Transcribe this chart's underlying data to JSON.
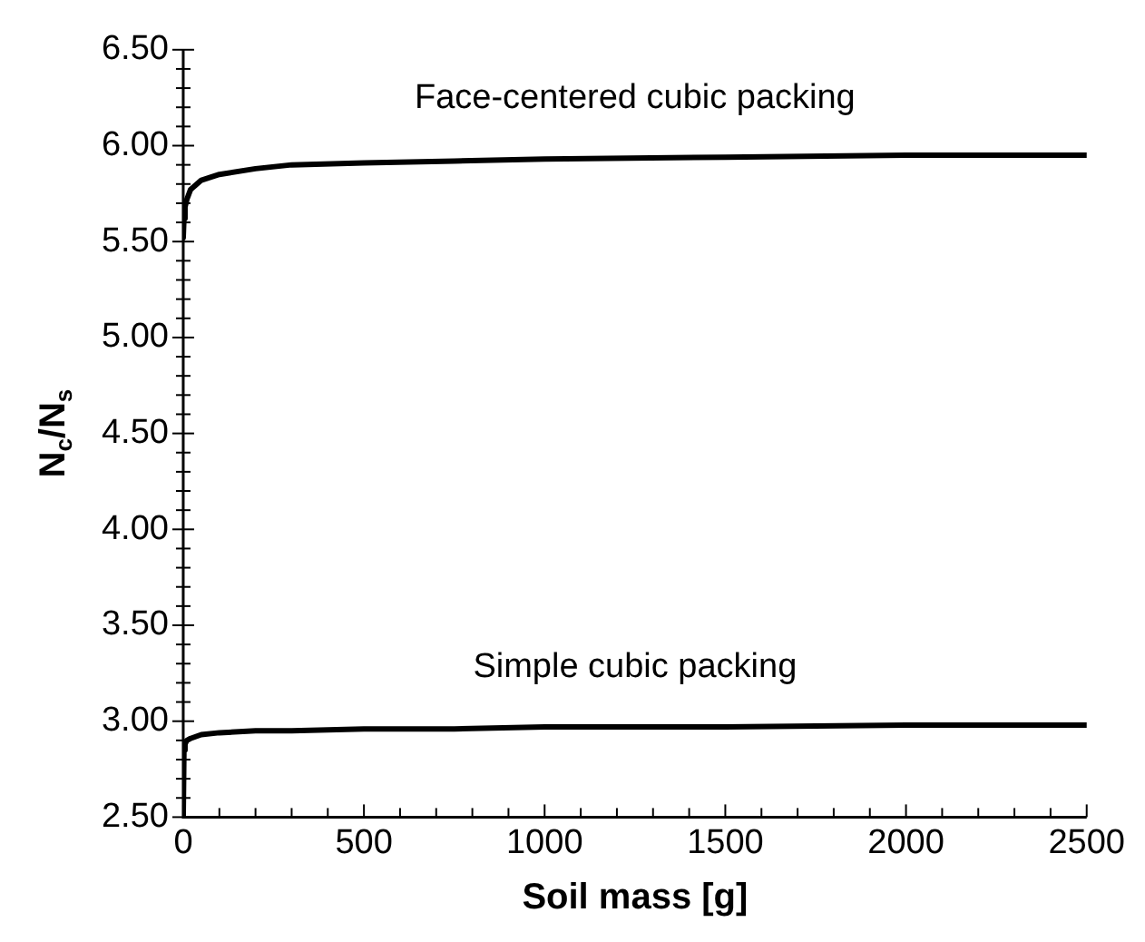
{
  "chart_data": {
    "type": "line",
    "xlabel": "Soil mass [g]",
    "ylabel": "N$_{c}$/N$_{s}$",
    "xlim": [
      0,
      2500
    ],
    "xticks": [
      0,
      {
        "value": 100,
        "label": null
      },
      {
        "value": 200,
        "label": null
      },
      {
        "value": 300,
        "label": null
      },
      {
        "value": 400,
        "label": null
      },
      500,
      {
        "value": 600,
        "label": null
      },
      {
        "value": 700,
        "label": null
      },
      {
        "value": 800,
        "label": null
      },
      {
        "value": 900,
        "label": null
      },
      1000,
      {
        "value": 1100,
        "label": null
      },
      {
        "value": 1200,
        "label": null
      },
      {
        "value": 1300,
        "label": null
      },
      {
        "value": 1400,
        "label": null
      },
      1500,
      {
        "value": 1600,
        "label": null
      },
      {
        "value": 1700,
        "label": null
      },
      {
        "value": 1800,
        "label": null
      },
      {
        "value": 1900,
        "label": null
      },
      2000,
      {
        "value": 2100,
        "label": null
      },
      {
        "value": 2200,
        "label": null
      },
      {
        "value": 2300,
        "label": null
      },
      {
        "value": 2400,
        "label": null
      },
      2500
    ],
    "ylim": [
      2.5,
      6.5
    ],
    "yticks": [
      {
        "value": 2.5,
        "label": "2.50"
      },
      {
        "value": 2.6,
        "label": null
      },
      {
        "value": 2.7,
        "label": null
      },
      {
        "value": 2.8,
        "label": null
      },
      {
        "value": 2.9,
        "label": null
      },
      {
        "value": 3,
        "label": "3.00"
      },
      {
        "value": 3.1,
        "label": null
      },
      {
        "value": 3.2,
        "label": null
      },
      {
        "value": 3.3,
        "label": null
      },
      {
        "value": 3.4,
        "label": null
      },
      {
        "value": 3.5,
        "label": "3.50"
      },
      {
        "value": 3.6,
        "label": null
      },
      {
        "value": 3.7,
        "label": null
      },
      {
        "value": 3.8,
        "label": null
      },
      {
        "value": 3.9,
        "label": null
      },
      {
        "value": 4,
        "label": "4.00"
      },
      {
        "value": 4.1,
        "label": null
      },
      {
        "value": 4.2,
        "label": null
      },
      {
        "value": 4.3,
        "label": null
      },
      {
        "value": 4.4,
        "label": null
      },
      {
        "value": 4.5,
        "label": "4.50"
      },
      {
        "value": 4.6,
        "label": null
      },
      {
        "value": 4.7,
        "label": null
      },
      {
        "value": 4.8,
        "label": null
      },
      {
        "value": 4.9,
        "label": null
      },
      {
        "value": 5,
        "label": "5.00"
      },
      {
        "value": 5.1,
        "label": null
      },
      {
        "value": 5.2,
        "label": null
      },
      {
        "value": 5.3,
        "label": null
      },
      {
        "value": 5.4,
        "label": null
      },
      {
        "value": 5.5,
        "label": "5.50"
      },
      {
        "value": 5.6,
        "label": null
      },
      {
        "value": 5.7,
        "label": null
      },
      {
        "value": 5.8,
        "label": null
      },
      {
        "value": 5.9,
        "label": null
      },
      {
        "value": 6,
        "label": "6.00"
      },
      {
        "value": 6.1,
        "label": null
      },
      {
        "value": 6.2,
        "label": null
      },
      {
        "value": 6.3,
        "label": null
      },
      {
        "value": 6.4,
        "label": null
      },
      {
        "value": 6.5,
        "label": "6.50"
      }
    ],
    "grid": false,
    "legend": false,
    "marker": "none",
    "line_style": "solid",
    "series": [
      {
        "color": "#000000",
        "x": [
          0,
          2,
          5,
          10,
          20,
          50,
          100,
          200,
          300,
          500,
          750,
          1000,
          1500,
          2000,
          2500
        ],
        "values": [
          5.52,
          5.62,
          5.68,
          5.72,
          5.77,
          5.82,
          5.85,
          5.88,
          5.9,
          5.91,
          5.92,
          5.93,
          5.94,
          5.95,
          5.95
        ]
      },
      {
        "color": "#000000",
        "x": [
          0,
          2,
          5,
          10,
          20,
          50,
          100,
          200,
          300,
          500,
          750,
          1000,
          1500,
          2000,
          2500
        ],
        "values": [
          2.5,
          2.85,
          2.88,
          2.9,
          2.91,
          2.93,
          2.94,
          2.95,
          2.95,
          2.96,
          2.96,
          2.97,
          2.97,
          2.98,
          2.98
        ]
      }
    ],
    "annotations": [
      "Face-centered cubic packing",
      "Simple cubic packing"
    ]
  }
}
